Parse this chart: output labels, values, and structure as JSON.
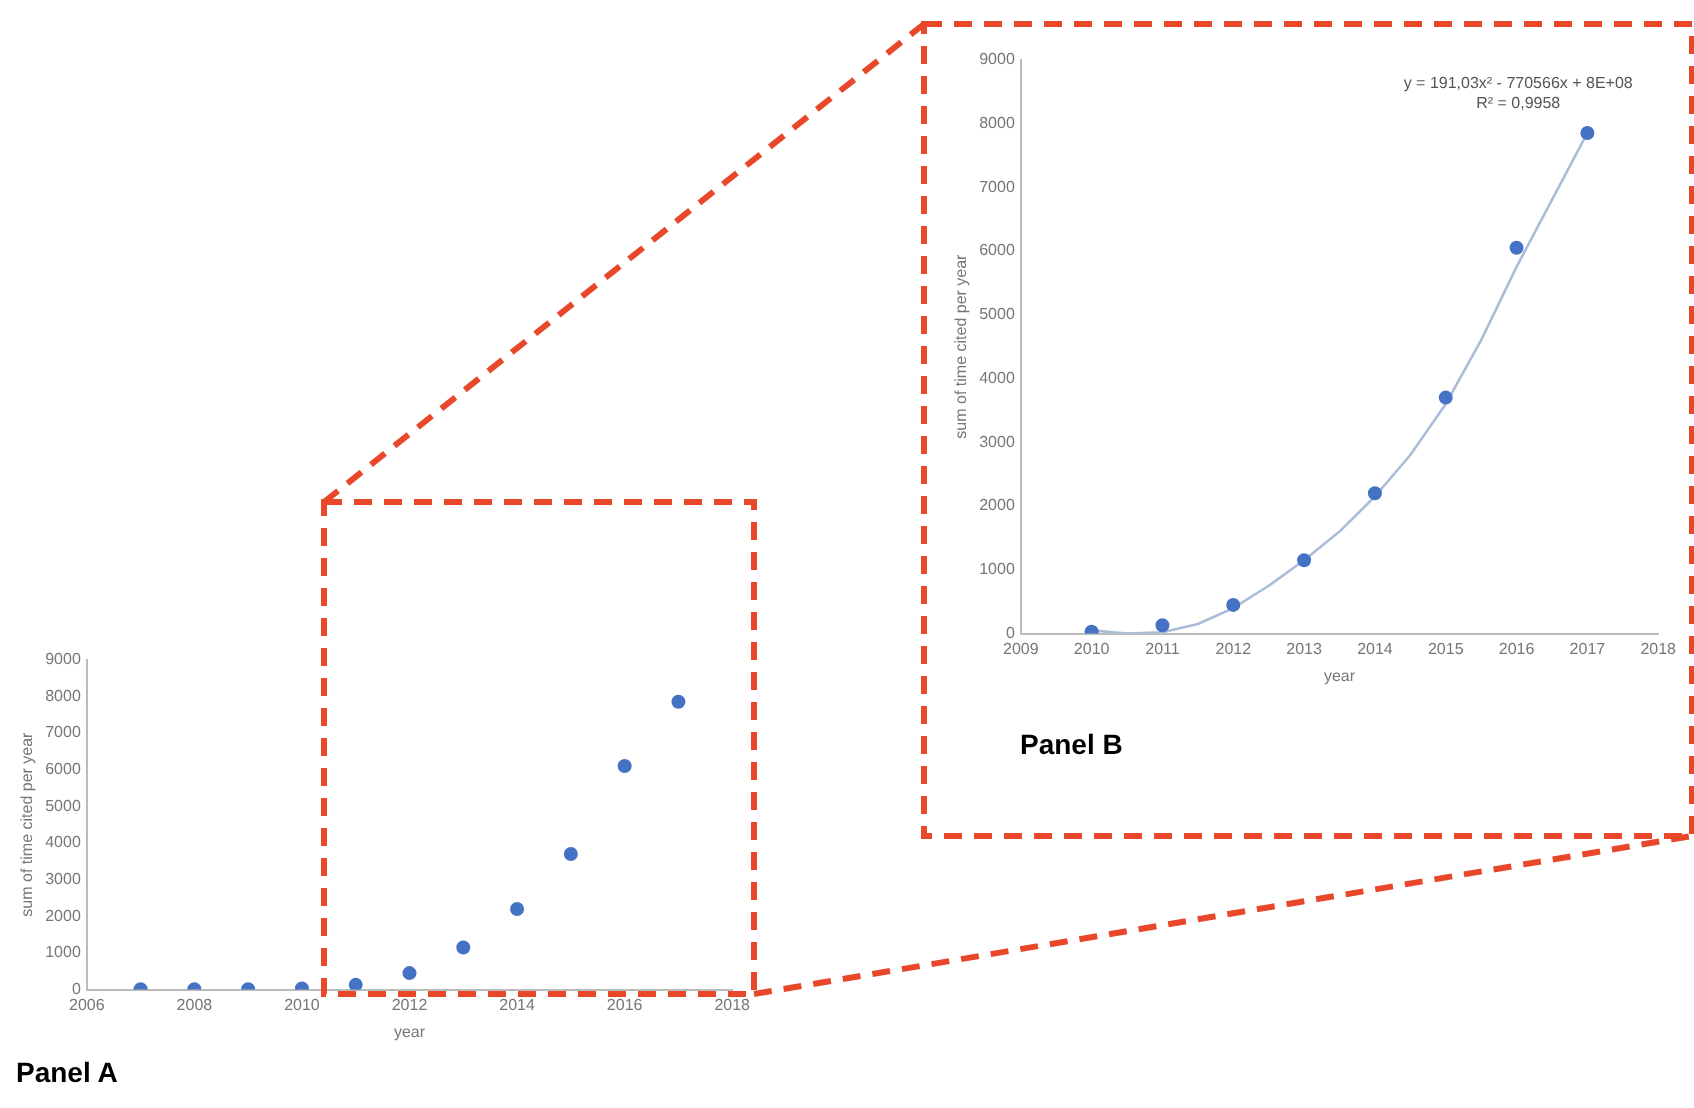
{
  "chart_data": [
    {
      "type": "scatter",
      "title": "Panel A",
      "xlabel": "year",
      "ylabel": "sum of time cited per year",
      "xlim": [
        2006,
        2018
      ],
      "xticks": [
        2006,
        2008,
        2010,
        2012,
        2014,
        2016,
        2018
      ],
      "ylim": [
        0,
        9000
      ],
      "yticks": [
        0,
        1000,
        2000,
        3000,
        4000,
        5000,
        6000,
        7000,
        8000,
        9000
      ],
      "marker": "circle",
      "series": [
        {
          "type": "scatter",
          "color": "#4472c4",
          "x": [
            2007,
            2008,
            2009,
            2010,
            2011,
            2012,
            2013,
            2014,
            2015,
            2016,
            2017
          ],
          "values": [
            10,
            10,
            10,
            30,
            130,
            450,
            1150,
            2200,
            3700,
            6100,
            7850
          ]
        }
      ]
    },
    {
      "type": "scatter",
      "title": "Panel B",
      "xlabel": "year",
      "ylabel": "sum of time cited per year",
      "xlim": [
        2009,
        2018
      ],
      "xticks": [
        2009,
        2010,
        2011,
        2012,
        2013,
        2014,
        2015,
        2016,
        2017,
        2018
      ],
      "ylim": [
        0,
        9000
      ],
      "yticks": [
        0,
        1000,
        2000,
        3000,
        4000,
        5000,
        6000,
        7000,
        8000,
        9000
      ],
      "marker": "circle",
      "annotations": [
        "y = 191,03x² - 770566x + 8E+08",
        "R² = 0,9958"
      ],
      "series": [
        {
          "type": "scatter",
          "color": "#4472c4",
          "x": [
            2010,
            2011,
            2012,
            2013,
            2014,
            2015,
            2016,
            2017
          ],
          "values": [
            30,
            130,
            450,
            1150,
            2200,
            3700,
            6050,
            7850
          ]
        },
        {
          "type": "line",
          "marker": "none",
          "color": "#a9bcd8",
          "x": [
            2010,
            2010.5,
            2011,
            2011.5,
            2012,
            2012.5,
            2013,
            2013.5,
            2014,
            2014.5,
            2015,
            2015.5,
            2016,
            2016.5,
            2017
          ],
          "values": [
            50,
            0,
            20,
            150,
            400,
            750,
            1150,
            1600,
            2150,
            2800,
            3600,
            4600,
            5750,
            6800,
            7850
          ]
        }
      ]
    }
  ]
}
